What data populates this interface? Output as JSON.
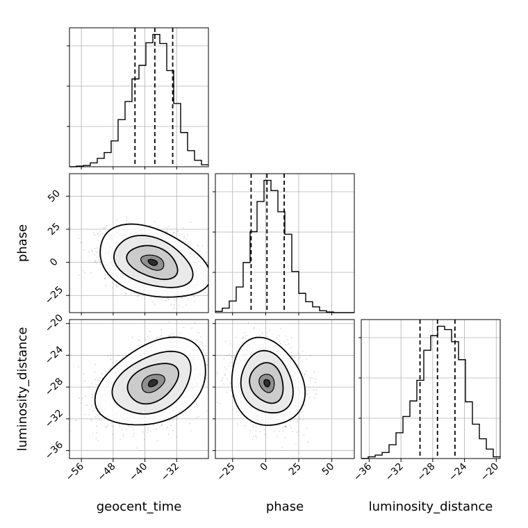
{
  "chart_data": {
    "type": "corner",
    "parameters": [
      "geocent_time",
      "phase",
      "luminosity_distance"
    ],
    "ranges": {
      "geocent_time": [
        -59,
        -24
      ],
      "phase": [
        -38,
        67
      ],
      "luminosity_distance": [
        -37,
        -19.5
      ]
    },
    "ticks": {
      "geocent_time": [
        -56,
        -48,
        -40,
        -32
      ],
      "phase": [
        -25,
        0,
        25,
        50
      ],
      "luminosity_distance": [
        -36,
        -32,
        -28,
        -24,
        -20
      ]
    },
    "tick_labels": {
      "geocent_time": [
        "−56",
        "−48",
        "−40",
        "−32"
      ],
      "phase": [
        "−25",
        "0",
        "25",
        "50"
      ],
      "luminosity_distance": [
        "−36",
        "−32",
        "−28",
        "−24",
        "−20"
      ]
    },
    "quantiles": {
      "geocent_time": [
        -42.5,
        -37.5,
        -33.0
      ],
      "phase": [
        -11.0,
        1.0,
        14.0
      ],
      "luminosity_distance": [
        -29.6,
        -27.4,
        -25.2
      ]
    },
    "histograms": {
      "geocent_time": {
        "edges": [
          -59,
          -57.25,
          -55.5,
          -53.75,
          -52,
          -50.25,
          -48.5,
          -46.75,
          -45,
          -43.25,
          -41.5,
          -39.75,
          -38,
          -36.25,
          -34.5,
          -32.75,
          -31,
          -29.25,
          -27.5,
          -25.75,
          -24
        ],
        "counts": [
          0,
          1,
          2,
          6,
          13,
          22,
          40,
          73,
          101,
          136,
          157,
          192,
          205,
          191,
          149,
          98,
          53,
          25,
          10,
          3
        ]
      },
      "phase": {
        "edges": [
          -38,
          -32.75,
          -27.5,
          -22.25,
          -17,
          -11.75,
          -6.5,
          -1.25,
          4,
          9.25,
          14.5,
          19.75,
          25,
          30.25,
          35.5,
          40.75,
          46,
          51.25,
          56.5,
          61.75,
          67
        ],
        "counts": [
          2,
          7,
          18,
          40,
          78,
          126,
          173,
          206,
          190,
          157,
          122,
          64,
          30,
          17,
          9,
          3,
          1,
          0,
          0,
          0
        ]
      },
      "luminosity_distance": {
        "edges": [
          -37,
          -36.125,
          -35.25,
          -34.375,
          -33.5,
          -32.625,
          -31.75,
          -30.875,
          -30,
          -29.125,
          -28.25,
          -27.375,
          -26.5,
          -25.625,
          -24.75,
          -23.875,
          -23,
          -22.125,
          -21.25,
          -20.375,
          -19.5
        ],
        "counts": [
          0,
          2,
          4,
          7,
          16,
          30,
          49,
          67,
          91,
          126,
          143,
          154,
          150,
          136,
          115,
          66,
          40,
          23,
          11,
          2
        ]
      }
    },
    "pair_means": {
      "geocent_time|phase": [
        -38,
        0
      ],
      "geocent_time|luminosity_distance": [
        -38,
        -27.5
      ],
      "phase|luminosity_distance": [
        1,
        -27.5
      ]
    },
    "pair_sigmas": {
      "geocent_time|phase": [
        5.8,
        11.5
      ],
      "geocent_time|luminosity_distance": [
        5.8,
        2.3
      ],
      "phase|luminosity_distance": [
        11.5,
        2.3
      ]
    },
    "pair_correlation": {
      "geocent_time|phase": -0.35,
      "geocent_time|luminosity_distance": 0.35,
      "phase|luminosity_distance": -0.15
    },
    "grid": true,
    "colors": {
      "hist": "#000000",
      "quantile": "#000000",
      "scatter": "#888888",
      "grid": "#b0b0b0"
    }
  }
}
